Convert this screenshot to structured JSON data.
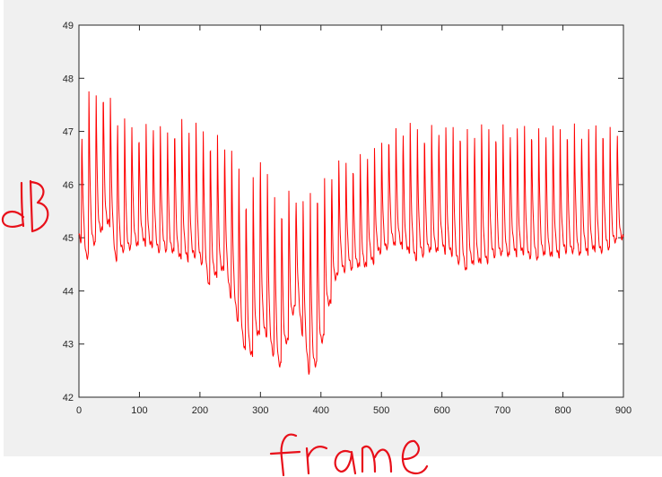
{
  "colors": {
    "figure_bg": "#f0f0f0",
    "axes_bg": "#ffffff",
    "axis": "#262626",
    "series": "#ff0000",
    "handwriting": "#e8101a"
  },
  "chart_data": {
    "type": "line",
    "title": "",
    "xlabel": "frame",
    "ylabel": "dB",
    "xlim": [
      0,
      900
    ],
    "ylim": [
      42,
      49
    ],
    "xticks": [
      0,
      100,
      200,
      300,
      400,
      500,
      600,
      700,
      800,
      900
    ],
    "yticks": [
      42,
      43,
      44,
      45,
      46,
      47,
      48,
      49
    ],
    "grid": false,
    "legend": "none",
    "period_frames": 11.8,
    "series": [
      {
        "values_description": "peak_and_trough_envelope",
        "peaks": [
          {
            "x": 0,
            "y": 46.4
          },
          {
            "x": 12,
            "y": 47.9
          },
          {
            "x": 24,
            "y": 47.9
          },
          {
            "x": 36,
            "y": 48.1
          },
          {
            "x": 50,
            "y": 47.7
          },
          {
            "x": 65,
            "y": 47.4
          },
          {
            "x": 80,
            "y": 47.3
          },
          {
            "x": 100,
            "y": 47.2
          },
          {
            "x": 140,
            "y": 47.2
          },
          {
            "x": 170,
            "y": 47.3
          },
          {
            "x": 200,
            "y": 47.2
          },
          {
            "x": 215,
            "y": 47.2
          },
          {
            "x": 230,
            "y": 47.0
          },
          {
            "x": 245,
            "y": 46.8
          },
          {
            "x": 262,
            "y": 46.7
          },
          {
            "x": 275,
            "y": 46.0
          },
          {
            "x": 290,
            "y": 46.3
          },
          {
            "x": 300,
            "y": 46.8
          },
          {
            "x": 315,
            "y": 46.1
          },
          {
            "x": 330,
            "y": 45.9
          },
          {
            "x": 345,
            "y": 46.0
          },
          {
            "x": 360,
            "y": 45.8
          },
          {
            "x": 375,
            "y": 45.8
          },
          {
            "x": 385,
            "y": 46.2
          },
          {
            "x": 400,
            "y": 46.2
          },
          {
            "x": 420,
            "y": 46.4
          },
          {
            "x": 450,
            "y": 46.6
          },
          {
            "x": 480,
            "y": 46.7
          },
          {
            "x": 500,
            "y": 46.9
          },
          {
            "x": 520,
            "y": 47.2
          },
          {
            "x": 550,
            "y": 47.2
          },
          {
            "x": 600,
            "y": 47.2
          },
          {
            "x": 700,
            "y": 47.2
          },
          {
            "x": 800,
            "y": 47.2
          },
          {
            "x": 900,
            "y": 47.2
          }
        ],
        "troughs": [
          {
            "x": 0,
            "y": 45.0
          },
          {
            "x": 12,
            "y": 44.6
          },
          {
            "x": 50,
            "y": 45.3
          },
          {
            "x": 60,
            "y": 44.6
          },
          {
            "x": 100,
            "y": 44.9
          },
          {
            "x": 150,
            "y": 44.7
          },
          {
            "x": 180,
            "y": 44.6
          },
          {
            "x": 200,
            "y": 44.6
          },
          {
            "x": 215,
            "y": 44.1
          },
          {
            "x": 240,
            "y": 44.4
          },
          {
            "x": 260,
            "y": 43.5
          },
          {
            "x": 275,
            "y": 42.8
          },
          {
            "x": 290,
            "y": 42.8
          },
          {
            "x": 300,
            "y": 43.3
          },
          {
            "x": 315,
            "y": 43.0
          },
          {
            "x": 330,
            "y": 42.5
          },
          {
            "x": 345,
            "y": 43.0
          },
          {
            "x": 360,
            "y": 43.9
          },
          {
            "x": 380,
            "y": 42.4
          },
          {
            "x": 395,
            "y": 42.6
          },
          {
            "x": 410,
            "y": 43.5
          },
          {
            "x": 430,
            "y": 44.4
          },
          {
            "x": 460,
            "y": 44.4
          },
          {
            "x": 480,
            "y": 44.5
          },
          {
            "x": 520,
            "y": 44.9
          },
          {
            "x": 560,
            "y": 44.6
          },
          {
            "x": 600,
            "y": 44.8
          },
          {
            "x": 640,
            "y": 44.4
          },
          {
            "x": 680,
            "y": 44.6
          },
          {
            "x": 720,
            "y": 44.7
          },
          {
            "x": 760,
            "y": 44.6
          },
          {
            "x": 800,
            "y": 44.7
          },
          {
            "x": 840,
            "y": 44.7
          },
          {
            "x": 880,
            "y": 44.8
          },
          {
            "x": 900,
            "y": 45.0
          }
        ]
      }
    ]
  },
  "handwriting": {
    "ylabel": "dB",
    "xlabel": "frame"
  }
}
